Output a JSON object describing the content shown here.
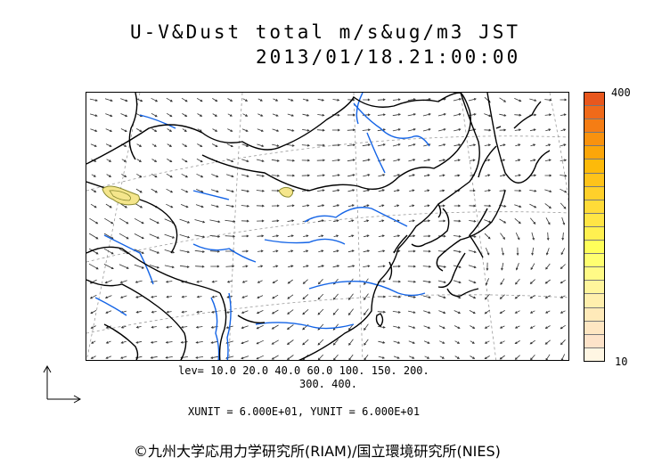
{
  "title": {
    "line1": "U-V&Dust total m/s&ug/m3 JST",
    "line2": "2013/01/18.21:00:00"
  },
  "colorbar": {
    "max_label": "400",
    "min_label": "10",
    "colors": [
      "#e8571d",
      "#f06a1a",
      "#f57d14",
      "#f8920e",
      "#fba609",
      "#fdba0a",
      "#fec31a",
      "#ffd02a",
      "#ffdb38",
      "#ffe545",
      "#fff050",
      "#ffff5a",
      "#ffff70",
      "#fffa86",
      "#fff59c",
      "#ffefad",
      "#ffeab9",
      "#fee6c2",
      "#fde3c9",
      "#fff6e3"
    ]
  },
  "levels": {
    "line1": "lev= 10.0 20.0 40.0 60.0 100. 150. 200.",
    "line2": "300. 400."
  },
  "units": {
    "text": "XUNIT = 6.000E+01, YUNIT = 6.000E+01"
  },
  "map": {
    "coast_color": "#000000",
    "river_color": "#1464e6",
    "graticule_color": "#9a9a9a",
    "dust_fill": "#f5e68c",
    "dust_contour": "#8a8a30"
  },
  "copyright": "©九州大学応用力学研究所(RIAM)/国立環境研究所(NIES)"
}
